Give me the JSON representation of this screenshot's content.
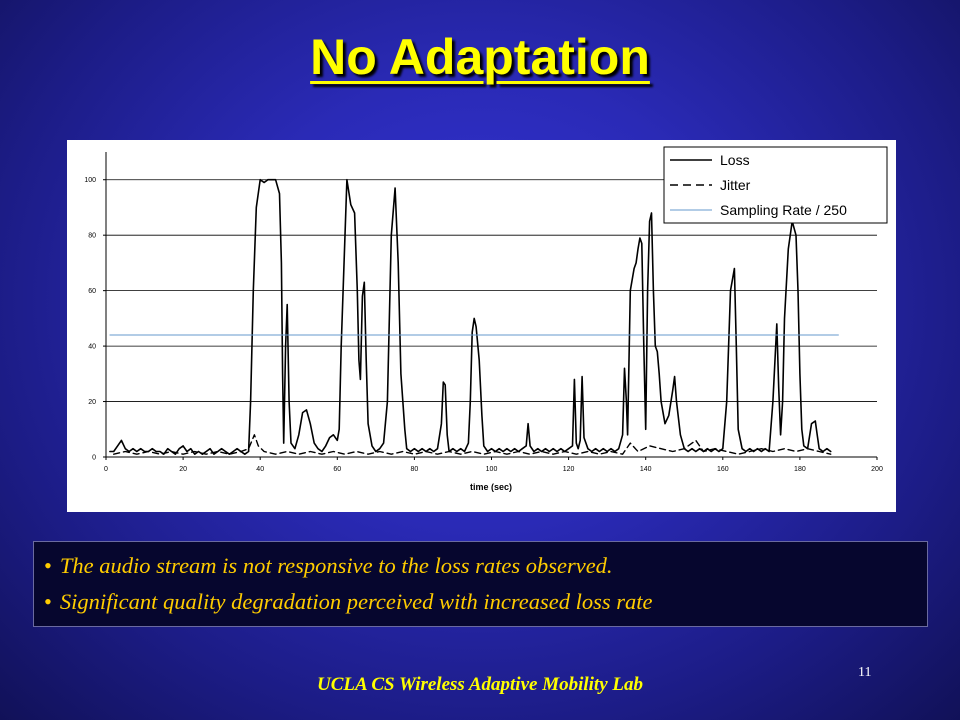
{
  "slide": {
    "title": "No Adaptation",
    "bullets": [
      "The audio stream is not responsive to the loss rates observed.",
      "Significant quality degradation perceived with increased loss rate"
    ],
    "bullet_symbol": "•",
    "page_number": "11",
    "footer": "UCLA CS Wireless Adaptive Mobility Lab"
  },
  "colors": {
    "title": "#ffff00",
    "bullet_text": "#ffcc00",
    "loss_line": "#000000",
    "jitter_line": "#000000",
    "sampling_line": "#6699cc"
  },
  "chart_data": {
    "type": "line",
    "title": "",
    "xlabel": "time (sec)",
    "ylabel": "",
    "xlim": [
      0,
      200
    ],
    "ylim": [
      0,
      110
    ],
    "xticks": [
      0,
      20,
      40,
      60,
      80,
      100,
      120,
      140,
      160,
      180,
      200
    ],
    "yticks": [
      0,
      20,
      40,
      60,
      80,
      100
    ],
    "grid": "horizontal",
    "legend_position": "top-right",
    "series": [
      {
        "name": "Loss",
        "style": "solid",
        "points": [
          [
            1,
            2
          ],
          [
            2,
            2
          ],
          [
            3,
            4
          ],
          [
            4,
            6
          ],
          [
            5,
            3
          ],
          [
            6,
            2
          ],
          [
            7,
            3
          ],
          [
            8,
            2
          ],
          [
            9,
            3
          ],
          [
            10,
            2
          ],
          [
            11,
            2
          ],
          [
            12,
            3
          ],
          [
            13,
            2
          ],
          [
            14,
            2
          ],
          [
            15,
            1
          ],
          [
            16,
            3
          ],
          [
            17,
            2
          ],
          [
            18,
            1
          ],
          [
            19,
            3
          ],
          [
            20,
            4
          ],
          [
            21,
            2
          ],
          [
            22,
            3
          ],
          [
            23,
            1
          ],
          [
            24,
            2
          ],
          [
            25,
            1
          ],
          [
            26,
            2
          ],
          [
            27,
            3
          ],
          [
            28,
            1
          ],
          [
            29,
            2
          ],
          [
            30,
            3
          ],
          [
            31,
            2
          ],
          [
            32,
            1
          ],
          [
            33,
            2
          ],
          [
            34,
            3
          ],
          [
            35,
            2
          ],
          [
            36,
            1
          ],
          [
            37,
            2
          ],
          [
            37.5,
            20
          ],
          [
            38.2,
            60
          ],
          [
            39,
            90
          ],
          [
            40,
            100
          ],
          [
            41,
            99
          ],
          [
            42,
            100
          ],
          [
            43,
            100
          ],
          [
            44,
            100
          ],
          [
            45,
            95
          ],
          [
            45.5,
            70
          ],
          [
            45.8,
            30
          ],
          [
            46.1,
            5
          ],
          [
            46.6,
            40
          ],
          [
            47,
            55
          ],
          [
            47.5,
            20
          ],
          [
            48,
            5
          ],
          [
            49,
            3
          ],
          [
            50,
            8
          ],
          [
            51,
            16
          ],
          [
            52,
            17
          ],
          [
            53,
            12
          ],
          [
            54,
            5
          ],
          [
            55,
            3
          ],
          [
            56,
            2
          ],
          [
            57,
            4
          ],
          [
            58,
            7
          ],
          [
            59,
            8
          ],
          [
            60,
            6
          ],
          [
            60.5,
            10
          ],
          [
            61,
            40
          ],
          [
            62,
            80
          ],
          [
            62.5,
            100
          ],
          [
            63.5,
            91
          ],
          [
            64.5,
            88
          ],
          [
            65.2,
            60
          ],
          [
            65.6,
            35
          ],
          [
            66,
            28
          ],
          [
            66.5,
            58
          ],
          [
            67,
            63
          ],
          [
            67.5,
            35
          ],
          [
            68,
            12
          ],
          [
            69,
            4
          ],
          [
            70,
            2
          ],
          [
            71,
            3
          ],
          [
            72,
            5
          ],
          [
            73,
            20
          ],
          [
            74,
            80
          ],
          [
            75,
            97
          ],
          [
            75.8,
            70
          ],
          [
            76.5,
            30
          ],
          [
            77.5,
            10
          ],
          [
            78,
            3
          ],
          [
            79,
            2
          ],
          [
            80,
            3
          ],
          [
            81,
            2
          ],
          [
            82,
            3
          ],
          [
            83,
            2
          ],
          [
            84,
            3
          ],
          [
            85,
            2
          ],
          [
            86,
            3
          ],
          [
            87,
            12
          ],
          [
            87.5,
            27
          ],
          [
            88,
            26
          ],
          [
            88.5,
            8
          ],
          [
            89,
            2
          ],
          [
            90,
            3
          ],
          [
            91,
            2
          ],
          [
            92,
            3
          ],
          [
            93,
            2
          ],
          [
            94,
            5
          ],
          [
            94.5,
            20
          ],
          [
            95,
            45
          ],
          [
            95.5,
            50
          ],
          [
            96,
            47
          ],
          [
            96.8,
            35
          ],
          [
            97.5,
            15
          ],
          [
            98,
            4
          ],
          [
            99,
            2
          ],
          [
            100,
            3
          ],
          [
            101,
            2
          ],
          [
            102,
            3
          ],
          [
            103,
            2
          ],
          [
            104,
            3
          ],
          [
            105,
            2
          ],
          [
            106,
            3
          ],
          [
            107,
            2
          ],
          [
            108,
            3
          ],
          [
            109,
            4
          ],
          [
            109.5,
            12
          ],
          [
            110,
            4
          ],
          [
            111,
            2
          ],
          [
            112,
            3
          ],
          [
            113,
            2
          ],
          [
            114,
            3
          ],
          [
            115,
            2
          ],
          [
            116,
            3
          ],
          [
            117,
            2
          ],
          [
            118,
            3
          ],
          [
            119,
            2
          ],
          [
            120,
            3
          ],
          [
            121,
            4
          ],
          [
            121.5,
            28
          ],
          [
            122,
            5
          ],
          [
            122.5,
            3
          ],
          [
            123,
            6
          ],
          [
            123.5,
            29
          ],
          [
            124,
            7
          ],
          [
            125,
            3
          ],
          [
            126,
            2
          ],
          [
            127,
            3
          ],
          [
            128,
            2
          ],
          [
            129,
            3
          ],
          [
            130,
            2
          ],
          [
            131,
            3
          ],
          [
            132,
            2
          ],
          [
            133,
            3
          ],
          [
            134,
            8
          ],
          [
            134.5,
            32
          ],
          [
            135,
            20
          ],
          [
            135.3,
            8
          ],
          [
            136,
            60
          ],
          [
            137,
            68
          ],
          [
            137.5,
            70
          ],
          [
            138,
            75
          ],
          [
            138.5,
            79
          ],
          [
            139,
            77
          ],
          [
            139.5,
            40
          ],
          [
            140,
            10
          ],
          [
            140.5,
            60
          ],
          [
            141,
            85
          ],
          [
            141.5,
            88
          ],
          [
            142,
            60
          ],
          [
            142.5,
            40
          ],
          [
            143,
            38
          ],
          [
            143.5,
            30
          ],
          [
            144,
            20
          ],
          [
            145,
            12
          ],
          [
            146,
            15
          ],
          [
            147,
            24
          ],
          [
            147.5,
            29
          ],
          [
            148,
            20
          ],
          [
            149,
            8
          ],
          [
            150,
            3
          ],
          [
            151,
            2
          ],
          [
            152,
            3
          ],
          [
            153,
            2
          ],
          [
            154,
            3
          ],
          [
            155,
            2
          ],
          [
            156,
            3
          ],
          [
            157,
            2
          ],
          [
            158,
            3
          ],
          [
            159,
            2
          ],
          [
            160,
            3
          ],
          [
            161,
            20
          ],
          [
            162,
            60
          ],
          [
            163,
            68
          ],
          [
            163.5,
            40
          ],
          [
            164,
            10
          ],
          [
            165,
            3
          ],
          [
            166,
            2
          ],
          [
            167,
            3
          ],
          [
            168,
            2
          ],
          [
            169,
            3
          ],
          [
            170,
            2
          ],
          [
            171,
            3
          ],
          [
            172,
            2
          ],
          [
            173,
            20
          ],
          [
            174,
            48
          ],
          [
            174.5,
            25
          ],
          [
            175,
            8
          ],
          [
            175.5,
            20
          ],
          [
            176,
            50
          ],
          [
            177,
            75
          ],
          [
            178,
            85
          ],
          [
            179,
            80
          ],
          [
            179.5,
            60
          ],
          [
            180,
            30
          ],
          [
            180.5,
            10
          ],
          [
            181,
            4
          ],
          [
            182,
            3
          ],
          [
            183,
            12
          ],
          [
            184,
            13
          ],
          [
            184.5,
            8
          ],
          [
            185,
            3
          ],
          [
            186,
            2
          ],
          [
            187,
            3
          ],
          [
            188,
            2
          ]
        ]
      },
      {
        "name": "Jitter",
        "style": "dashed",
        "points": [
          [
            2,
            1
          ],
          [
            5,
            2
          ],
          [
            8,
            1
          ],
          [
            11,
            2
          ],
          [
            14,
            1
          ],
          [
            17,
            2
          ],
          [
            20,
            1
          ],
          [
            23,
            2
          ],
          [
            26,
            1
          ],
          [
            29,
            2
          ],
          [
            32,
            1
          ],
          [
            35,
            2
          ],
          [
            37,
            3
          ],
          [
            38.5,
            8
          ],
          [
            39.5,
            4
          ],
          [
            41,
            2
          ],
          [
            44,
            1
          ],
          [
            47,
            2
          ],
          [
            50,
            1
          ],
          [
            53,
            2
          ],
          [
            56,
            1
          ],
          [
            59,
            2
          ],
          [
            62,
            1
          ],
          [
            65,
            2
          ],
          [
            68,
            1
          ],
          [
            71,
            2
          ],
          [
            74,
            1
          ],
          [
            77,
            2
          ],
          [
            80,
            1
          ],
          [
            83,
            2
          ],
          [
            86,
            1
          ],
          [
            89,
            2
          ],
          [
            92,
            1
          ],
          [
            95,
            2
          ],
          [
            98,
            1
          ],
          [
            101,
            2
          ],
          [
            104,
            1
          ],
          [
            107,
            2
          ],
          [
            110,
            1
          ],
          [
            113,
            2
          ],
          [
            116,
            1
          ],
          [
            119,
            2
          ],
          [
            122,
            1
          ],
          [
            125,
            2
          ],
          [
            128,
            1
          ],
          [
            131,
            2
          ],
          [
            134,
            1
          ],
          [
            136,
            5
          ],
          [
            138,
            2
          ],
          [
            141,
            4
          ],
          [
            144,
            3
          ],
          [
            147,
            2
          ],
          [
            150,
            3
          ],
          [
            153,
            6
          ],
          [
            155,
            2
          ],
          [
            158,
            3
          ],
          [
            161,
            2
          ],
          [
            164,
            1
          ],
          [
            167,
            2
          ],
          [
            170,
            3
          ],
          [
            173,
            2
          ],
          [
            176,
            3
          ],
          [
            179,
            2
          ],
          [
            182,
            3
          ],
          [
            185,
            2
          ],
          [
            188,
            1
          ]
        ]
      },
      {
        "name": "Sampling Rate / 250",
        "style": "solid-thin",
        "points": [
          [
            1,
            44
          ],
          [
            190,
            44
          ]
        ]
      }
    ]
  }
}
